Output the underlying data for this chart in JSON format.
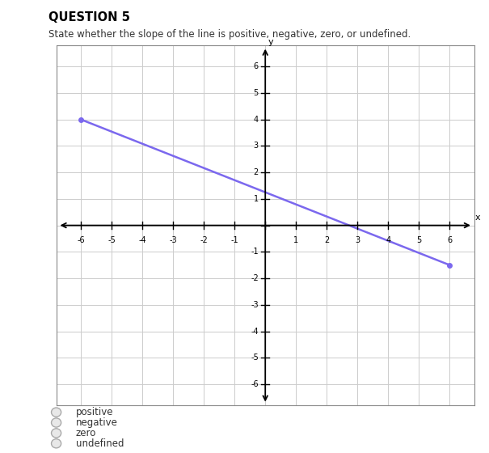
{
  "title": "QUESTION 5",
  "subtitle": "State whether the slope of the line is positive, negative, zero, or undefined.",
  "line_x": [
    -6,
    6
  ],
  "line_y": [
    4,
    -1.5
  ],
  "line_color": "#7B68EE",
  "line_width": 1.8,
  "xlim": [
    -6.5,
    6.5
  ],
  "ylim": [
    -6.5,
    6.5
  ],
  "xticks": [
    -6,
    -5,
    -4,
    -3,
    -2,
    -1,
    0,
    1,
    2,
    3,
    4,
    5,
    6
  ],
  "yticks": [
    -6,
    -5,
    -4,
    -3,
    -2,
    -1,
    0,
    1,
    2,
    3,
    4,
    5,
    6
  ],
  "grid_color": "#cccccc",
  "axis_color": "#000000",
  "background_color": "#ffffff",
  "choices": [
    "positive",
    "negative",
    "zero",
    "undefined"
  ],
  "xlabel": "x",
  "ylabel": "y",
  "box_color": "#888888"
}
